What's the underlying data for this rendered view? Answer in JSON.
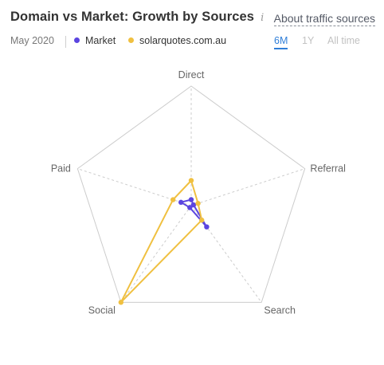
{
  "header": {
    "title": "Domain vs Market: Growth by Sources",
    "info_icon": "info-icon",
    "about_link": "About traffic sources"
  },
  "subbar": {
    "date": "May 2020",
    "legend": [
      {
        "name": "Market",
        "color": "#5b45e0"
      },
      {
        "name": "solarquotes.com.au",
        "color": "#f0c040"
      }
    ],
    "periods": [
      {
        "label": "6M",
        "active": true
      },
      {
        "label": "1Y",
        "active": false
      },
      {
        "label": "All time",
        "active": false
      }
    ]
  },
  "chart_data": {
    "type": "radar",
    "axes": [
      "Direct",
      "Referral",
      "Search",
      "Social",
      "Paid"
    ],
    "range": [
      0,
      1
    ],
    "series": [
      {
        "name": "Market",
        "color": "#5b45e0",
        "values": [
          0.05,
          0.02,
          0.22,
          0.02,
          0.09
        ]
      },
      {
        "name": "solarquotes.com.au",
        "color": "#f0c040",
        "values": [
          0.21,
          0.06,
          0.15,
          1.0,
          0.16
        ]
      }
    ]
  }
}
